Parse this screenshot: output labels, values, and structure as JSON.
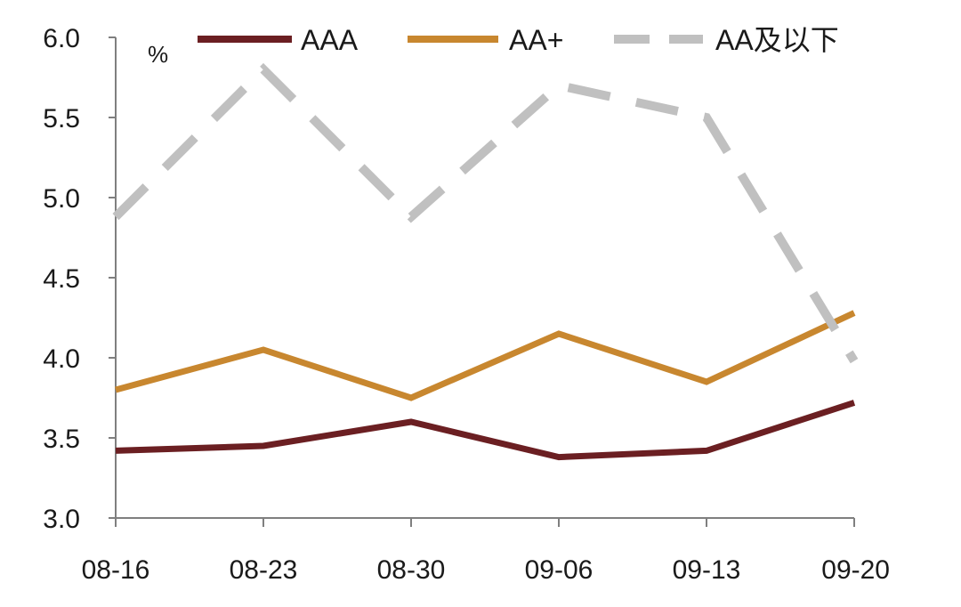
{
  "chart_data": {
    "type": "line",
    "unit": "%",
    "categories": [
      "08-16",
      "08-23",
      "08-30",
      "09-06",
      "09-13",
      "09-20"
    ],
    "ylim": [
      3.0,
      6.0
    ],
    "yticks": [
      "3.0",
      "3.5",
      "4.0",
      "4.5",
      "5.0",
      "5.5",
      "6.0"
    ],
    "grid": false,
    "legend": "top",
    "series": [
      {
        "name": "AAA",
        "color": "#6b1f22",
        "dash": "solid",
        "values": [
          3.42,
          3.45,
          3.6,
          3.38,
          3.42,
          3.72
        ]
      },
      {
        "name": "AA+",
        "color": "#c8872f",
        "dash": "solid",
        "values": [
          3.8,
          4.05,
          3.75,
          4.15,
          3.85,
          4.28
        ]
      },
      {
        "name": "AA及以下",
        "color": "#c0c0c0",
        "dash": "dashed",
        "values": [
          4.88,
          5.8,
          4.88,
          5.7,
          5.5,
          3.98
        ]
      }
    ]
  }
}
